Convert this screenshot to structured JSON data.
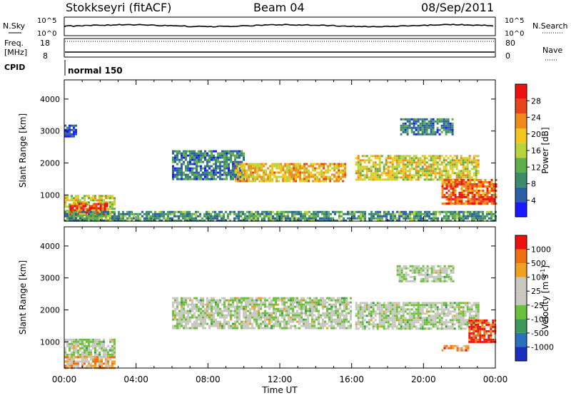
{
  "header": {
    "radar": "Stokkseyri (fitACF)",
    "beam": "Beam 04",
    "date": "08/Sep/2011"
  },
  "noise_panel": {
    "left_label": "N.Sky",
    "right_label": "N.Search",
    "ticks": [
      "10^5",
      "10^0"
    ]
  },
  "freq_panel": {
    "left_label_1": "Freq.",
    "left_label_2": "[MHz]",
    "left_ticks": [
      "18",
      "8"
    ],
    "right_label": "Nave",
    "right_ticks": [
      "80",
      "0"
    ]
  },
  "cpid": {
    "label": "CPID",
    "value": "normal 150"
  },
  "x_axis": {
    "label": "Time UT",
    "ticks": [
      "00:00",
      "04:00",
      "08:00",
      "12:00",
      "16:00",
      "20:00",
      "00:00"
    ]
  },
  "colors": {
    "power": [
      "#1a1aff",
      "#2d5fa8",
      "#3c8c6c",
      "#5fb04a",
      "#b8d43a",
      "#f2c81e",
      "#f08a18",
      "#e8451a",
      "#ee1111"
    ],
    "velocity": [
      "#1a2fbf",
      "#2a6fc0",
      "#3c9a5a",
      "#6bc23a",
      "#c8c8c0",
      "#c8c8c0",
      "#f2a020",
      "#f07010",
      "#ee1111"
    ]
  },
  "chart_data": [
    {
      "type": "heatmap",
      "title": "Power",
      "ylabel": "Slant Range [km]",
      "xlabel": "Time UT",
      "xlim_hours": [
        0,
        24
      ],
      "ylim": [
        180,
        4600
      ],
      "yticks": [
        1000,
        2000,
        3000,
        4000
      ],
      "colorbar": {
        "label": "Power [dB]",
        "range": [
          0,
          32
        ],
        "ticks": [
          "28",
          "24",
          "20",
          "16",
          "12",
          "8",
          "4"
        ]
      },
      "regions": [
        {
          "t0": 0.0,
          "t1": 2.8,
          "r0": 200,
          "r1": 1000,
          "level": 0.55
        },
        {
          "t0": 0.3,
          "t1": 2.4,
          "r0": 350,
          "r1": 750,
          "level": 0.85
        },
        {
          "t0": 0.0,
          "t1": 0.7,
          "r0": 2800,
          "r1": 3200,
          "level": 0.12
        },
        {
          "t0": 6.0,
          "t1": 10.0,
          "r0": 1500,
          "r1": 2400,
          "level": 0.25
        },
        {
          "t0": 9.5,
          "t1": 15.6,
          "r0": 1450,
          "r1": 2000,
          "level": 0.62
        },
        {
          "t0": 16.2,
          "t1": 23.0,
          "r0": 1500,
          "r1": 2250,
          "level": 0.55
        },
        {
          "t0": 18.7,
          "t1": 21.6,
          "r0": 2900,
          "r1": 3400,
          "level": 0.25
        },
        {
          "t0": 21.0,
          "t1": 24.0,
          "r0": 700,
          "r1": 1500,
          "level": 0.8
        },
        {
          "t0": 0.0,
          "t1": 24.0,
          "r0": 200,
          "r1": 500,
          "level": 0.3
        }
      ]
    },
    {
      "type": "heatmap",
      "title": "Velocity",
      "ylabel": "Slant Range [km]",
      "xlabel": "Time UT",
      "xlim_hours": [
        0,
        24
      ],
      "ylim": [
        180,
        4600
      ],
      "yticks": [
        1000,
        2000,
        3000,
        4000
      ],
      "colorbar": {
        "label": "Velocity [m s^-1]",
        "units_text": "Velocity [m s",
        "units_sup": "-1",
        "units_end": "]",
        "ticks": [
          "1000",
          "500",
          "100",
          "25",
          "-25",
          "-100",
          "-500",
          "-1000"
        ]
      },
      "regions": [
        {
          "t0": 0.0,
          "t1": 2.8,
          "r0": 550,
          "r1": 1100,
          "level": 0.5
        },
        {
          "t0": 0.0,
          "t1": 2.8,
          "r0": 200,
          "r1": 550,
          "level": 0.7
        },
        {
          "t0": 6.0,
          "t1": 16.0,
          "r0": 1400,
          "r1": 2400,
          "level": 0.5
        },
        {
          "t0": 16.2,
          "t1": 23.0,
          "r0": 1400,
          "r1": 2250,
          "level": 0.5
        },
        {
          "t0": 18.5,
          "t1": 21.6,
          "r0": 2900,
          "r1": 3400,
          "level": 0.5
        },
        {
          "t0": 21.0,
          "t1": 22.5,
          "r0": 700,
          "r1": 900,
          "level": 0.75
        },
        {
          "t0": 22.5,
          "t1": 24.0,
          "r0": 1000,
          "r1": 1700,
          "level": 0.92
        }
      ]
    }
  ]
}
